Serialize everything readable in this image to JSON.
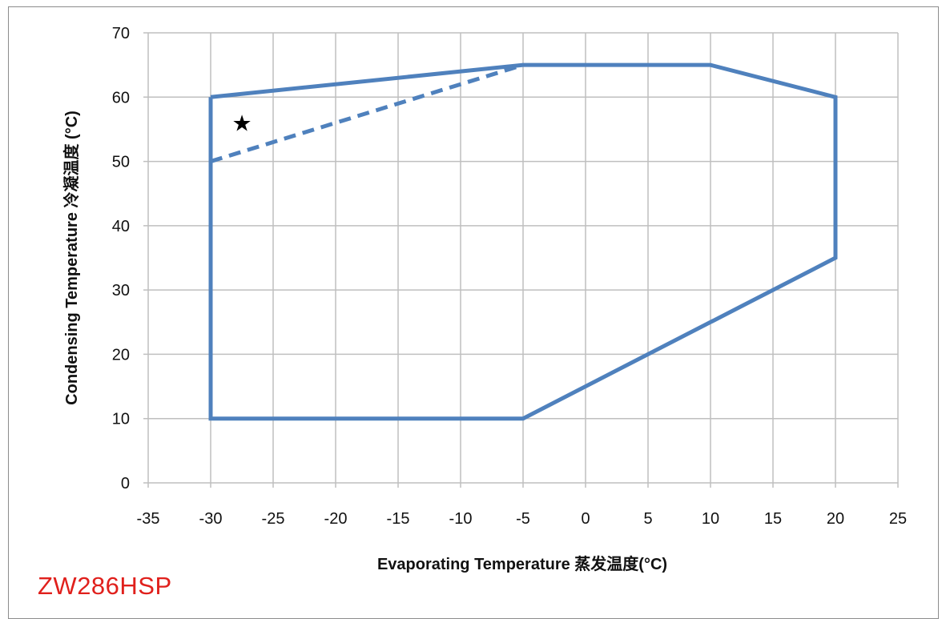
{
  "chart_data": {
    "type": "line",
    "title": "",
    "xlabel": "Evaporating Temperature 蒸发温度(°C)",
    "ylabel": "Condensing Temperature 冷凝温度 (°C)",
    "xlim": [
      -35,
      25
    ],
    "ylim": [
      0,
      70
    ],
    "xticks": [
      -35,
      -30,
      -25,
      -20,
      -15,
      -10,
      -5,
      0,
      5,
      10,
      15,
      20,
      25
    ],
    "yticks": [
      0,
      10,
      20,
      30,
      40,
      50,
      60,
      70
    ],
    "grid": true,
    "series": [
      {
        "style": "solid",
        "color": "#4f81bd",
        "x": [
          -30,
          -5,
          10,
          20,
          20,
          -5,
          -30,
          -30
        ],
        "y": [
          60,
          65,
          65,
          60,
          35,
          10,
          10,
          60
        ]
      },
      {
        "style": "dashed",
        "color": "#4f81bd",
        "x": [
          -30,
          -5
        ],
        "y": [
          50,
          65
        ]
      }
    ],
    "markers": [
      {
        "symbol": "★",
        "x": -27.5,
        "y": 56
      }
    ]
  },
  "model_label": "ZW286HSP",
  "colors": {
    "series": "#4f81bd",
    "model_label": "#e0201c",
    "grid": "#bfbfbf"
  }
}
